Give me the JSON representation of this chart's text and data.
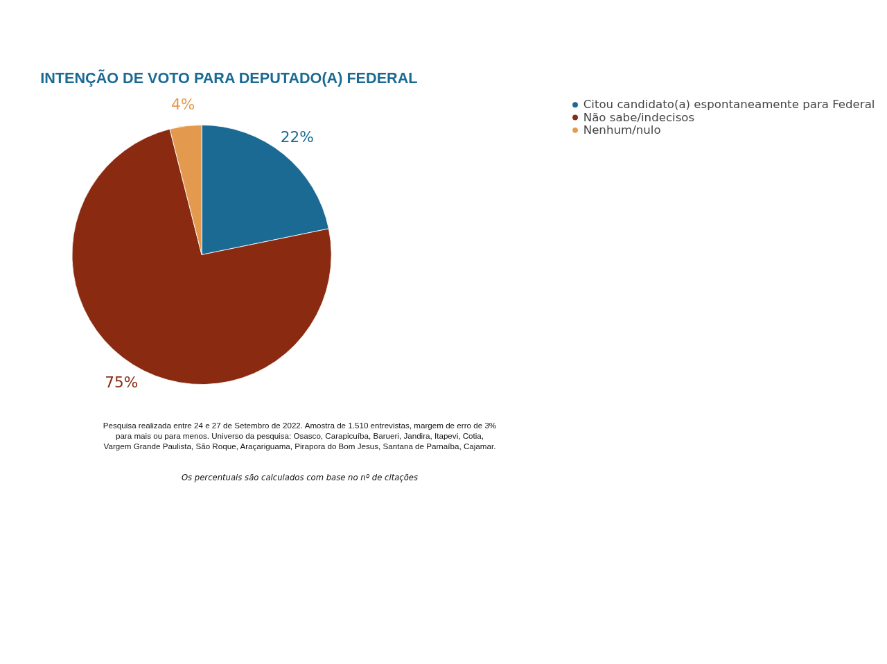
{
  "chart_data": {
    "type": "pie",
    "title": "INTENÇÃO DE VOTO PARA DEPUTADO(A) FEDERAL",
    "categories": [
      "Citou candidato(a) espontaneamente para Federal",
      "Não sabe/indecisos",
      "Nenhum/nulo"
    ],
    "values": [
      22,
      75,
      4
    ],
    "colors": [
      "#1a6a94",
      "#8a2b11",
      "#e39a4f"
    ],
    "value_labels": [
      "22%",
      "75%",
      "4%"
    ],
    "legend": "right",
    "annotations": [
      "Pesquisa realizada entre 24 e 27 de Setembro de 2022. Amostra de 1.510 entrevistas, margem de erro de 3% para mais ou para menos. Universo da pesquisa: Osasco, Carapicuíba, Barueri, Jandira, Itapevi, Cotia, Vargem Grande Paulista, São Roque, Araçariguama, Pirapora do Bom Jesus, Santana de Parnaíba, Cajamar.",
      "Os percentuais são calculados com base no nº de citações"
    ]
  }
}
